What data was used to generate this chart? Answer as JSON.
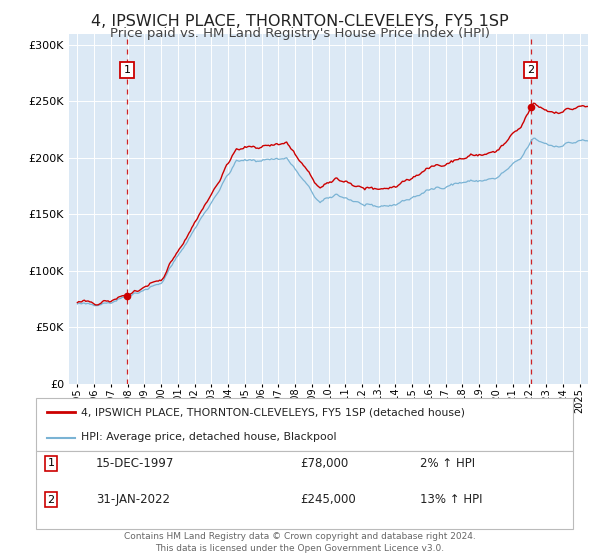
{
  "title": "4, IPSWICH PLACE, THORNTON-CLEVELEYS, FY5 1SP",
  "subtitle": "Price paid vs. HM Land Registry's House Price Index (HPI)",
  "title_fontsize": 11.5,
  "subtitle_fontsize": 9.5,
  "bg_color": "#dce9f5",
  "fig_bg_color": "#ffffff",
  "hpi_color": "#7ab3d4",
  "price_color": "#cc0000",
  "sale1_date": 1997.96,
  "sale1_price": 78000,
  "sale2_date": 2022.08,
  "sale2_price": 245000,
  "ylim": [
    0,
    310000
  ],
  "xlim": [
    1994.5,
    2025.5
  ],
  "ylabel_ticks": [
    0,
    50000,
    100000,
    150000,
    200000,
    250000,
    300000
  ],
  "ylabel_labels": [
    "£0",
    "£50K",
    "£100K",
    "£150K",
    "£200K",
    "£250K",
    "£300K"
  ],
  "legend_line1": "4, IPSWICH PLACE, THORNTON-CLEVELEYS, FY5 1SP (detached house)",
  "legend_line2": "HPI: Average price, detached house, Blackpool",
  "table_row1": [
    "1",
    "15-DEC-1997",
    "£78,000",
    "2% ↑ HPI"
  ],
  "table_row2": [
    "2",
    "31-JAN-2022",
    "£245,000",
    "13% ↑ HPI"
  ],
  "footer": "Contains HM Land Registry data © Crown copyright and database right 2024.\nThis data is licensed under the Open Government Licence v3.0."
}
